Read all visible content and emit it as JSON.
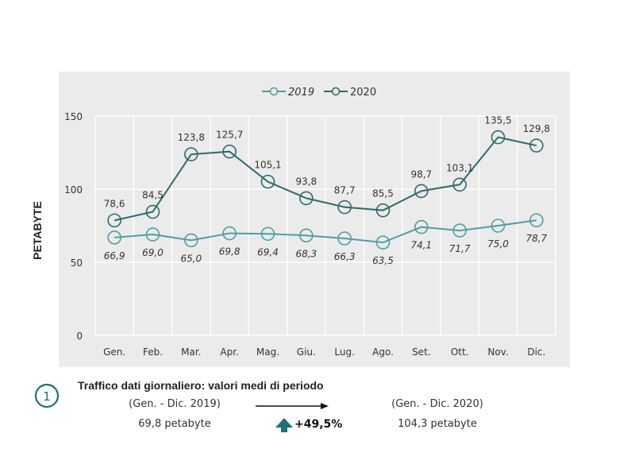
{
  "chart_data": {
    "type": "line",
    "title": "",
    "xlabel": "",
    "ylabel": "PETABYTE",
    "ylim": [
      0,
      150
    ],
    "yticks": [
      0,
      50,
      100,
      150
    ],
    "grid": true,
    "legend_position": "top-center",
    "categories": [
      "Gen.",
      "Feb.",
      "Mar.",
      "Apr.",
      "Mag.",
      "Giu.",
      "Lug.",
      "Ago.",
      "Set.",
      "Ott.",
      "Nov.",
      "Dic."
    ],
    "series": [
      {
        "name": "2019",
        "color": "#4E9EA0",
        "label_style": "italic",
        "values": [
          66.9,
          69.0,
          65.0,
          69.8,
          69.4,
          68.3,
          66.3,
          63.5,
          74.1,
          71.7,
          75.0,
          78.7
        ],
        "labels": [
          "66,9",
          "69,0",
          "65,0",
          "69,8",
          "69,4",
          "68,3",
          "66,3",
          "63,5",
          "74,1",
          "71,7",
          "75,0",
          "78,7"
        ]
      },
      {
        "name": "2020",
        "color": "#2F6A6C",
        "label_style": "normal",
        "values": [
          78.6,
          84.5,
          123.8,
          125.7,
          105.1,
          93.8,
          87.7,
          85.5,
          98.7,
          103.1,
          135.5,
          129.8
        ],
        "labels": [
          "78,6",
          "84,5",
          "123,8",
          "125,7",
          "105,1",
          "93,8",
          "87,7",
          "85,5",
          "98,7",
          "103,1",
          "135,5",
          "129,8"
        ]
      }
    ]
  },
  "footer": {
    "badge_number": "1",
    "title": "Traffico dati giornaliero: valori medi di periodo",
    "period_from": "(Gen. - Dic. 2019)",
    "value_from": "69,8 petabyte",
    "period_to": "(Gen. - Dic. 2020)",
    "value_to": "104,3 petabyte",
    "change": "+49,5%",
    "accent_color": "#1F6F78"
  }
}
